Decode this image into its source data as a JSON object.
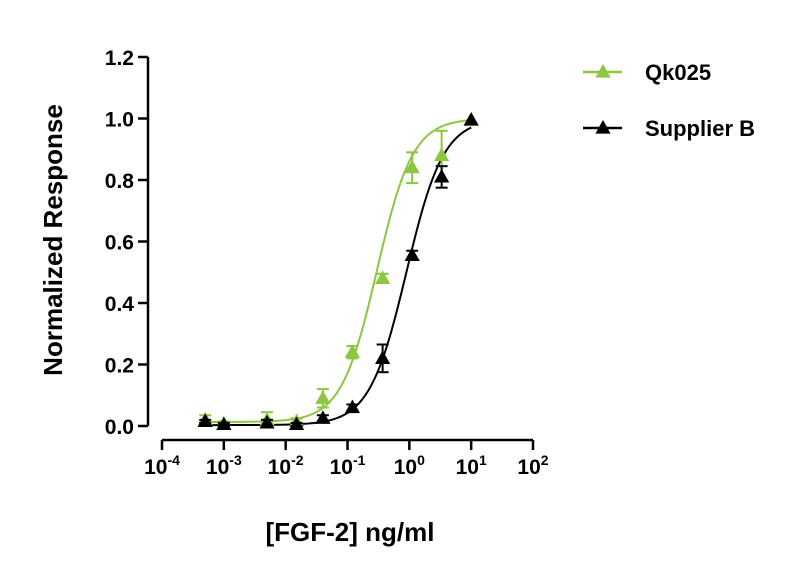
{
  "chart_data": {
    "type": "scatter",
    "title": "",
    "xlabel": "[FGF-2] ng/ml",
    "ylabel": "Normalized Response",
    "x_scale": "log10",
    "xlim": [
      0.0001,
      100
    ],
    "ylim": [
      0,
      1.2
    ],
    "x_ticks": [
      {
        "base": "10",
        "exp": "-4"
      },
      {
        "base": "10",
        "exp": "-3"
      },
      {
        "base": "10",
        "exp": "-2"
      },
      {
        "base": "10",
        "exp": "-1"
      },
      {
        "base": "10",
        "exp": "0"
      },
      {
        "base": "10",
        "exp": "1"
      },
      {
        "base": "10",
        "exp": "2"
      }
    ],
    "y_ticks": [
      "0.0",
      "0.2",
      "0.4",
      "0.6",
      "0.8",
      "1.0",
      "1.2"
    ],
    "grid": false,
    "legend_position": "top-right",
    "series": [
      {
        "name": "Qk025",
        "color": "#8dc63f",
        "marker": "triangle",
        "x": [
          0.0005,
          0.001,
          0.005,
          0.015,
          0.04,
          0.12,
          0.37,
          1.11,
          3.33,
          10
        ],
        "y": [
          0.02,
          0.005,
          0.02,
          0.015,
          0.09,
          0.24,
          0.48,
          0.84,
          0.88,
          0.995
        ],
        "error": [
          0.015,
          0.01,
          0.025,
          0.01,
          0.03,
          0.02,
          0.015,
          0.05,
          0.08,
          0.0
        ],
        "fit": {
          "model": "4PL",
          "bottom": 0.013,
          "top": 1.0,
          "ec50": 0.3,
          "hill": 1.5
        }
      },
      {
        "name": "Supplier B",
        "color": "#000000",
        "marker": "triangle",
        "x": [
          0.0005,
          0.001,
          0.005,
          0.015,
          0.04,
          0.12,
          0.37,
          1.11,
          3.33,
          10
        ],
        "y": [
          0.015,
          0.005,
          0.01,
          0.005,
          0.025,
          0.06,
          0.22,
          0.555,
          0.81,
          0.995
        ],
        "error": [
          0.005,
          0.005,
          0.01,
          0.005,
          0.01,
          0.01,
          0.045,
          0.015,
          0.035,
          0.0
        ],
        "fit": {
          "model": "4PL",
          "bottom": 0.003,
          "top": 1.0,
          "ec50": 0.9,
          "hill": 1.45
        }
      }
    ]
  }
}
